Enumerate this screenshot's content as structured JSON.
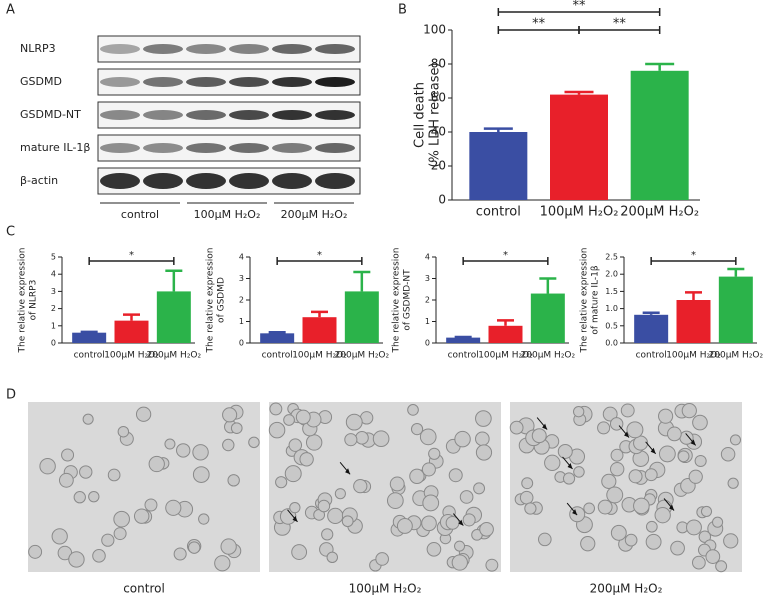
{
  "panels": [
    "A",
    "B",
    "C",
    "D"
  ],
  "blot": {
    "rows": [
      "NLRP3",
      "GSDMD",
      "GSDMD-NT",
      "mature IL-1β",
      "β-actin"
    ],
    "groups": [
      "control",
      "100μM H₂O₂",
      "200μM H₂O₂"
    ]
  },
  "chart_data": [
    {
      "type": "bar",
      "ylabel": [
        "Cell death",
        "(% LDH release)"
      ],
      "categories": [
        "control",
        "100μM H₂O₂",
        "200μM H₂O₂"
      ],
      "values": [
        40,
        62,
        76
      ],
      "errors": [
        2,
        1.5,
        4
      ],
      "colors": [
        "#3a4ea3",
        "#e8202a",
        "#2bb34a"
      ],
      "ylim": [
        0,
        100
      ],
      "yticks": [
        0,
        20,
        40,
        60,
        80,
        100
      ],
      "significance": [
        {
          "from": 0,
          "to": 2,
          "label": "**"
        },
        {
          "from": 0,
          "to": 1,
          "label": "**"
        },
        {
          "from": 1,
          "to": 2,
          "label": "**"
        }
      ]
    },
    {
      "type": "bar",
      "ylabel": [
        "The relative expression",
        "of  NLRP3"
      ],
      "categories": [
        "control",
        "100μM H₂O₂",
        "200μM H₂O₂"
      ],
      "values": [
        0.6,
        1.3,
        3.0
      ],
      "errors": [
        0.05,
        0.35,
        1.2
      ],
      "colors": [
        "#3a4ea3",
        "#e8202a",
        "#2bb34a"
      ],
      "ylim": [
        0,
        5
      ],
      "yticks": [
        0,
        1,
        2,
        3,
        4,
        5
      ],
      "significance": [
        {
          "from": 0,
          "to": 2,
          "label": "*"
        }
      ]
    },
    {
      "type": "bar",
      "ylabel": [
        "The relative expression",
        "of GSDMD"
      ],
      "categories": [
        "control",
        "100μM H₂O₂",
        "200μM H₂O₂"
      ],
      "values": [
        0.45,
        1.2,
        2.4
      ],
      "errors": [
        0.05,
        0.25,
        0.9
      ],
      "colors": [
        "#3a4ea3",
        "#e8202a",
        "#2bb34a"
      ],
      "ylim": [
        0,
        4
      ],
      "yticks": [
        0,
        1,
        2,
        3,
        4
      ],
      "significance": [
        {
          "from": 0,
          "to": 2,
          "label": "*"
        }
      ]
    },
    {
      "type": "bar",
      "ylabel": [
        "The relative expression",
        "of GSDMD-NT"
      ],
      "categories": [
        "control",
        "100μM H₂O₂",
        "200μM H₂O₂"
      ],
      "values": [
        0.25,
        0.8,
        2.3
      ],
      "errors": [
        0.03,
        0.25,
        0.7
      ],
      "colors": [
        "#3a4ea3",
        "#e8202a",
        "#2bb34a"
      ],
      "ylim": [
        0,
        4
      ],
      "yticks": [
        0,
        1,
        2,
        3,
        4
      ],
      "significance": [
        {
          "from": 0,
          "to": 2,
          "label": "*"
        }
      ]
    },
    {
      "type": "bar",
      "ylabel": [
        "The relative expression",
        "of  mature IL-1β"
      ],
      "categories": [
        "control",
        "100μM H₂O₂",
        "200μM H₂O₂"
      ],
      "values": [
        0.82,
        1.25,
        1.93
      ],
      "errors": [
        0.06,
        0.22,
        0.22
      ],
      "colors": [
        "#3a4ea3",
        "#e8202a",
        "#2bb34a"
      ],
      "ylim": [
        0,
        2.5
      ],
      "yticks": [
        {
          "value": 0,
          "label": "0.0"
        },
        {
          "value": 0.5,
          "label": "0.5"
        },
        {
          "value": 1,
          "label": "1.0"
        },
        {
          "value": 1.5,
          "label": "1.5"
        },
        {
          "value": 2,
          "label": "2.0"
        },
        {
          "value": 2.5,
          "label": "2.5"
        }
      ],
      "significance": [
        {
          "from": 0,
          "to": 2,
          "label": "*"
        }
      ]
    }
  ],
  "micrographs": [
    "control",
    "100μM H₂O₂",
    "200μM H₂O₂"
  ]
}
